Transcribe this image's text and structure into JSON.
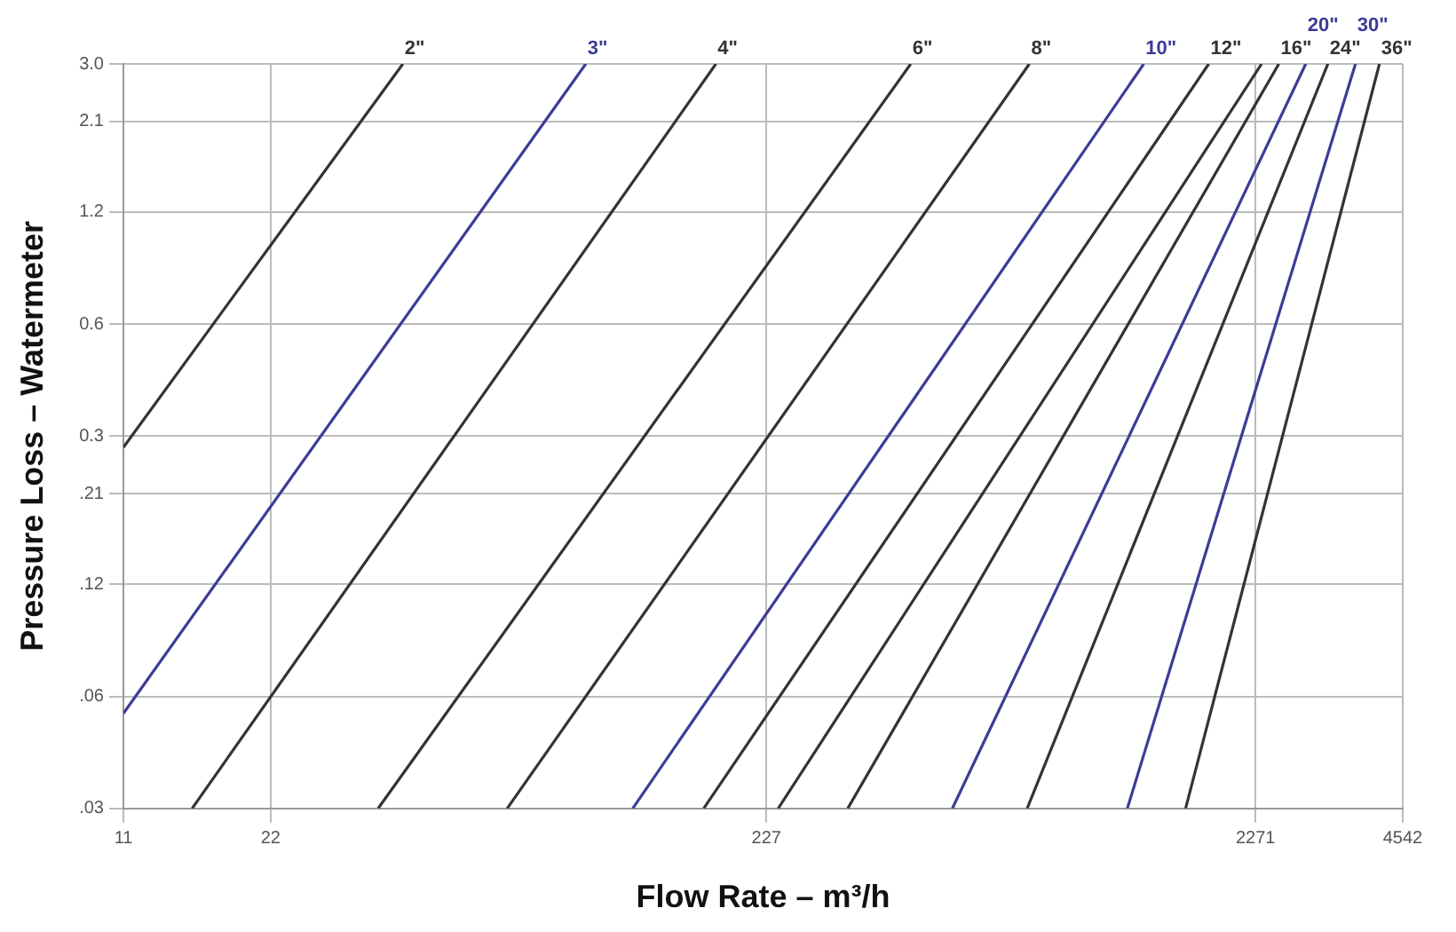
{
  "chart_data": {
    "type": "line",
    "xlabel": "Flow Rate – m³/h",
    "ylabel": "Pressure Loss – Watermeter",
    "log": "xy",
    "grid": true,
    "legend": false,
    "marker": "none",
    "line_style": "solid",
    "xlim": [
      11,
      4542
    ],
    "xticks": [
      11,
      22,
      227,
      2271,
      4542
    ],
    "ylim": [
      0.03,
      3.0
    ],
    "yticks": [
      {
        "value": 0.03,
        "label": ".03"
      },
      {
        "value": 0.06,
        "label": ".06"
      },
      {
        "value": 0.12,
        "label": ".12"
      },
      {
        "value": 0.21,
        "label": ".21"
      },
      {
        "value": 0.3,
        "label": "0.3"
      },
      {
        "value": 0.6,
        "label": "0.6"
      },
      {
        "value": 1.2,
        "label": "1.2"
      },
      {
        "value": 2.1,
        "label": "2.1"
      },
      {
        "value": 3,
        "label": "3.0"
      }
    ],
    "series": [
      {
        "name": "2\"",
        "color": "#333333",
        "x": [
          11,
          41
        ],
        "values": [
          0.28,
          3.0
        ]
      },
      {
        "name": "3\"",
        "color": "#3c3c96",
        "x": [
          11,
          97
        ],
        "values": [
          0.054,
          3.0
        ]
      },
      {
        "name": "4\"",
        "color": "#333333",
        "x": [
          15.2,
          179
        ],
        "values": [
          0.03,
          3.0
        ]
      },
      {
        "name": "6\"",
        "color": "#333333",
        "x": [
          36.5,
          448
        ],
        "values": [
          0.03,
          3.0
        ]
      },
      {
        "name": "8\"",
        "color": "#333333",
        "x": [
          67,
          783
        ],
        "values": [
          0.03,
          3.0
        ]
      },
      {
        "name": "10\"",
        "color": "#3c3c96",
        "x": [
          121,
          1342
        ],
        "values": [
          0.03,
          3.0
        ]
      },
      {
        "name": "12\"",
        "color": "#333333",
        "x": [
          169,
          1822
        ],
        "values": [
          0.03,
          3.0
        ]
      },
      {
        "color": "#333333",
        "x": [
          240,
          2337
        ],
        "values": [
          0.03,
          3.0
        ]
      },
      {
        "name": "16\"",
        "color": "#333333",
        "x": [
          333,
          2535
        ],
        "values": [
          0.03,
          3.0
        ]
      },
      {
        "name": "20\"",
        "color": "#3c3c96",
        "x": [
          545,
          2877
        ],
        "values": [
          0.03,
          3.0
        ]
      },
      {
        "name": "24\"",
        "color": "#333333",
        "x": [
          775,
          3193
        ],
        "values": [
          0.03,
          3.0
        ]
      },
      {
        "name": "30\"",
        "color": "#3c3c96",
        "x": [
          1242,
          3636
        ],
        "values": [
          0.03,
          3.0
        ]
      },
      {
        "name": "36\"",
        "color": "#333333",
        "x": [
          1634,
          4070
        ],
        "values": [
          0.03,
          3.0
        ]
      }
    ]
  }
}
